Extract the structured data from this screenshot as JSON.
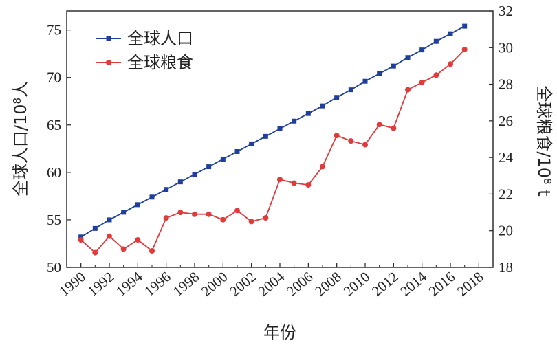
{
  "chart_data": {
    "type": "line",
    "x": [
      1990,
      1991,
      1992,
      1993,
      1994,
      1995,
      1996,
      1997,
      1998,
      1999,
      2000,
      2001,
      2002,
      2003,
      2004,
      2005,
      2006,
      2007,
      2008,
      2009,
      2010,
      2011,
      2012,
      2013,
      2014,
      2015,
      2016,
      2017
    ],
    "xlabel": "年份",
    "xticks": [
      1990,
      1992,
      1994,
      1996,
      1998,
      2000,
      2002,
      2004,
      2006,
      2008,
      2010,
      2012,
      2014,
      2016,
      2018
    ],
    "xlim": [
      1989,
      2019
    ],
    "y_left": {
      "label_main": "全球人口/10",
      "label_sup": "8",
      "label_unit": "人",
      "ylim": [
        50,
        77
      ],
      "ticks": [
        50,
        55,
        60,
        65,
        70,
        75
      ]
    },
    "y_right": {
      "label_main": "全球粮食/10",
      "label_sup": "8",
      "label_unit": " t",
      "ylim": [
        18,
        32
      ],
      "ticks": [
        18,
        20,
        22,
        24,
        26,
        28,
        30,
        32
      ]
    },
    "legend_position": "top-left",
    "series": [
      {
        "name": "全球人口",
        "axis": "left",
        "color": "#1f3f9a",
        "marker": "square",
        "values": [
          53.2,
          54.1,
          55.0,
          55.8,
          56.6,
          57.4,
          58.2,
          59.0,
          59.8,
          60.6,
          61.4,
          62.2,
          63.0,
          63.8,
          64.6,
          65.4,
          66.2,
          67.0,
          67.9,
          68.7,
          69.6,
          70.4,
          71.2,
          72.1,
          72.9,
          73.8,
          74.6,
          75.4
        ]
      },
      {
        "name": "全球粮食",
        "axis": "right",
        "color": "#e03b3b",
        "marker": "circle",
        "values": [
          19.5,
          18.8,
          19.7,
          19.0,
          19.5,
          18.9,
          20.7,
          21.0,
          20.9,
          20.9,
          20.6,
          21.1,
          20.5,
          20.7,
          22.8,
          22.6,
          22.5,
          23.5,
          25.2,
          24.9,
          24.7,
          25.8,
          25.6,
          27.7,
          28.1,
          28.5,
          29.1,
          29.9
        ]
      }
    ]
  }
}
